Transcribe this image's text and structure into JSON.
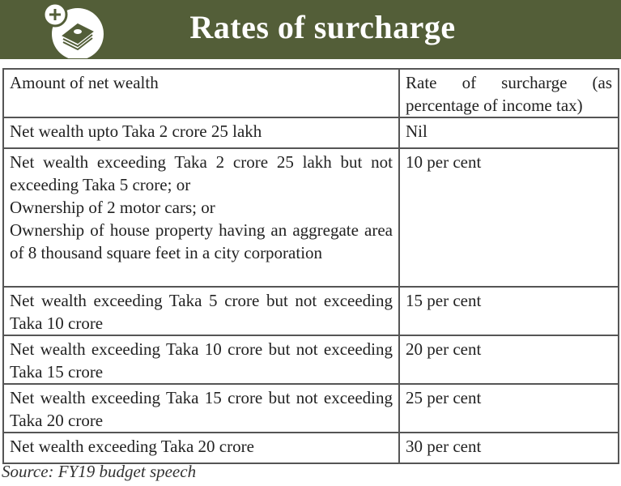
{
  "header": {
    "title": "Rates of surcharge",
    "icon": "money-plus-icon"
  },
  "table": {
    "headers": [
      "Amount of net wealth",
      "Rate of surcharge (as percentage of income tax)"
    ],
    "rows": [
      {
        "wealth": "Net wealth upto Taka 2 crore 25 lakh",
        "rate": "Nil"
      },
      {
        "wealth_lines": [
          "Net wealth exceeding Taka 2 crore 25 lakh but not exceeding Taka 5 crore; or",
          "Ownership of 2 motor cars; or",
          "Ownership of house property having an aggregate area of 8 thousand square feet in a city corporation"
        ],
        "rate": "10 per cent"
      },
      {
        "wealth": "Net wealth exceeding Taka 5 crore but not exceeding Taka 10 crore",
        "rate": "15 per cent"
      },
      {
        "wealth": "Net wealth exceeding Taka 10 crore but not exceeding Taka 15 crore",
        "rate": "20 per cent"
      },
      {
        "wealth": "Net wealth exceeding Taka 15 crore but not exceeding Taka 20 crore",
        "rate": "25 per cent"
      },
      {
        "wealth": "Net wealth exceeding Taka 20 crore",
        "rate": "30 per cent"
      }
    ]
  },
  "source": "Source: FY19 budget speech"
}
